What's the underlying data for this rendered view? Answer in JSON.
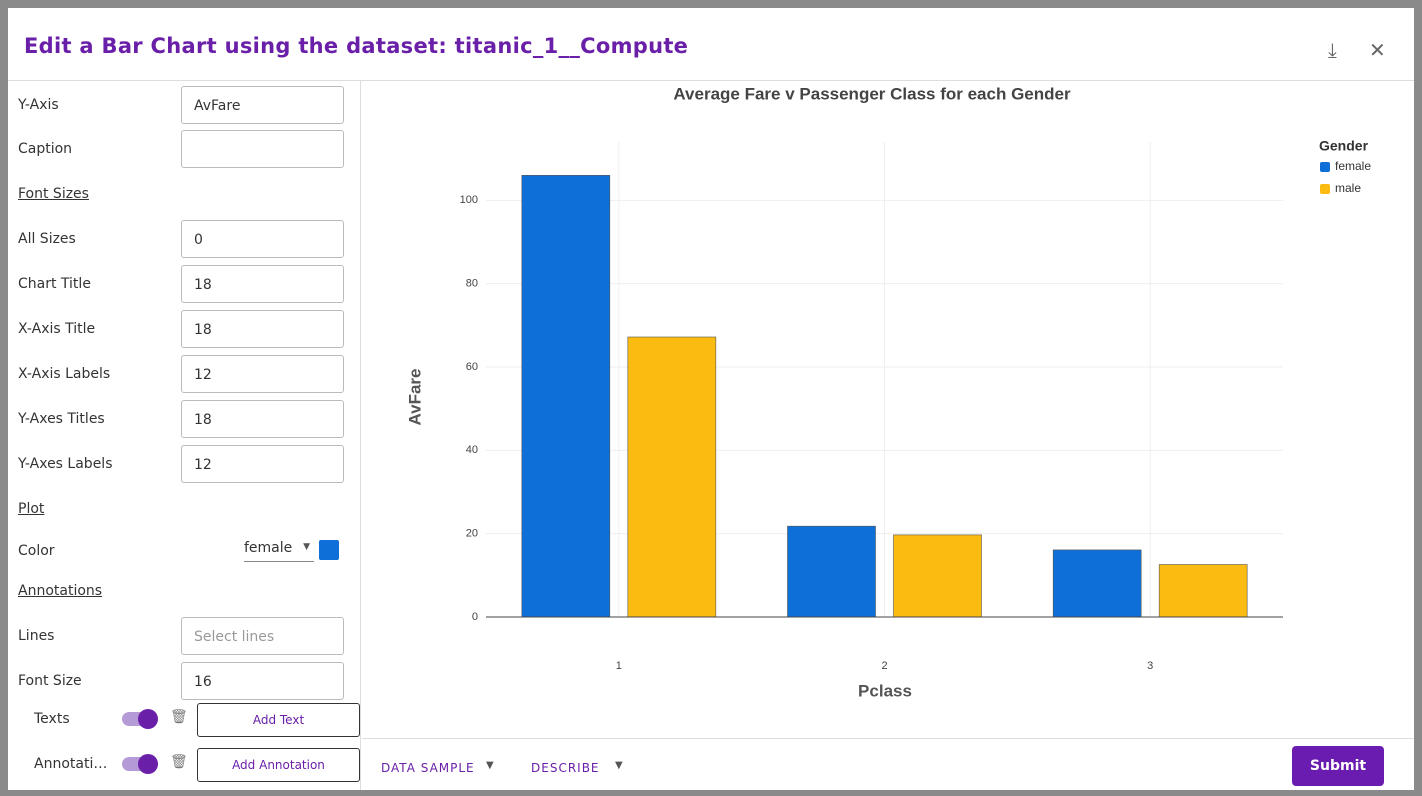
{
  "dialog": {
    "title": "Edit a Bar Chart using the dataset: titanic_1__Compute"
  },
  "form": {
    "rows": [
      {
        "label": "Y-Axis",
        "value": "AvFare"
      },
      {
        "label": "Caption"
      },
      {
        "section": "Font Sizes"
      },
      {
        "label": "All Sizes",
        "value": 0
      },
      {
        "label": "Chart Title",
        "value": 18
      },
      {
        "label": "X-Axis Title",
        "value": 18
      },
      {
        "label": "X-Axis Labels",
        "value": 12
      },
      {
        "label": "Y-Axes Titles",
        "value": 18
      },
      {
        "label": "Y-Axes Labels",
        "value": 12
      },
      {
        "section": "Plot"
      },
      {
        "label": "Color",
        "select": "female"
      },
      {
        "section": "Annotations"
      },
      {
        "label": "Lines",
        "placeholder": "Select lines"
      },
      {
        "label": "Font Size",
        "value": 16
      }
    ],
    "toggles": [
      {
        "label": "Texts",
        "button": "Add Text"
      },
      {
        "label": "Annotations",
        "button": "Add Annotation"
      }
    ]
  },
  "footer": {
    "tabs": [
      "DATA SAMPLE",
      "DESCRIBE"
    ],
    "submit": "Submit"
  },
  "chart_data": {
    "type": "bar",
    "title": "Average Fare v Passenger Class for each Gender",
    "x_label": "Pclass",
    "y_label": "AvFare",
    "legend_title": "Gender",
    "categories": [
      "1",
      "2",
      "3"
    ],
    "series": [
      {
        "name": "female",
        "color": "#0f6fd8",
        "values": [
          106.0,
          21.8,
          16.1
        ]
      },
      {
        "name": "male",
        "color": "#fbbb10",
        "values": [
          67.2,
          19.7,
          12.6
        ]
      }
    ],
    "ylim": [
      0,
      114
    ],
    "yticks": [
      0,
      20,
      40,
      60,
      80,
      100
    ],
    "grid": true,
    "legend": "top-right"
  }
}
